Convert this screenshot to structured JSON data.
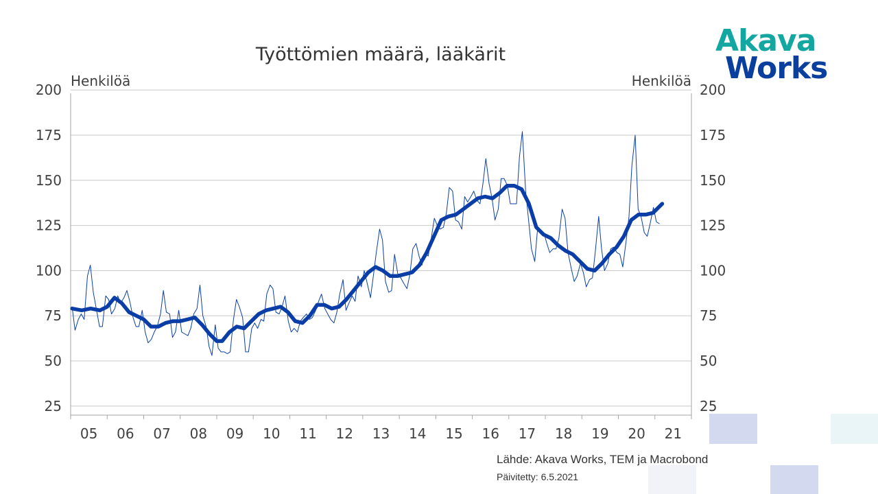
{
  "logo": {
    "line1": "Akava",
    "line2": "Works",
    "color1": "#14a7a2",
    "color2": "#0a3f9e"
  },
  "footer": {
    "source": "Lähde: Akava Works, TEM ja Macrobond",
    "updated": "Päivitetty:  6.5.2021"
  },
  "colors": {
    "series": "#0a3ea6",
    "grid": "#c8c8c8",
    "axis": "#a6a6a6",
    "text": "#404040"
  },
  "chart_data": {
    "type": "line",
    "title": "Työttömien määrä, lääkärit",
    "ylabel_left": "Henkilöä",
    "ylabel_right": "Henkilöä",
    "ylim": [
      20,
      205
    ],
    "yticks": [
      25,
      50,
      75,
      100,
      125,
      150,
      175,
      200
    ],
    "xlim": [
      2005.0,
      2022.0
    ],
    "xtick_labels": [
      "05",
      "06",
      "07",
      "08",
      "09",
      "10",
      "11",
      "12",
      "13",
      "14",
      "15",
      "16",
      "17",
      "18",
      "19",
      "20",
      "21"
    ],
    "grid": true,
    "legend": "none",
    "series": [
      {
        "style": "thin",
        "points": [
          [
            2005.04,
            80
          ],
          [
            2005.12,
            67
          ],
          [
            2005.21,
            73
          ],
          [
            2005.29,
            76
          ],
          [
            2005.37,
            73
          ],
          [
            2005.46,
            97
          ],
          [
            2005.54,
            103
          ],
          [
            2005.62,
            88
          ],
          [
            2005.71,
            78
          ],
          [
            2005.79,
            69
          ],
          [
            2005.87,
            69
          ],
          [
            2005.96,
            86
          ],
          [
            2006.04,
            84
          ],
          [
            2006.12,
            76
          ],
          [
            2006.21,
            79
          ],
          [
            2006.29,
            86
          ],
          [
            2006.37,
            82
          ],
          [
            2006.46,
            85
          ],
          [
            2006.54,
            89
          ],
          [
            2006.62,
            83
          ],
          [
            2006.71,
            74
          ],
          [
            2006.79,
            69
          ],
          [
            2006.87,
            69
          ],
          [
            2006.96,
            78
          ],
          [
            2007.04,
            66
          ],
          [
            2007.12,
            60
          ],
          [
            2007.21,
            62
          ],
          [
            2007.29,
            66
          ],
          [
            2007.37,
            69
          ],
          [
            2007.46,
            76
          ],
          [
            2007.54,
            89
          ],
          [
            2007.62,
            77
          ],
          [
            2007.71,
            76
          ],
          [
            2007.79,
            63
          ],
          [
            2007.87,
            66
          ],
          [
            2007.96,
            78
          ],
          [
            2008.04,
            66
          ],
          [
            2008.12,
            65
          ],
          [
            2008.21,
            64
          ],
          [
            2008.29,
            68
          ],
          [
            2008.37,
            76
          ],
          [
            2008.46,
            79
          ],
          [
            2008.54,
            92
          ],
          [
            2008.62,
            75
          ],
          [
            2008.71,
            69
          ],
          [
            2008.79,
            58
          ],
          [
            2008.87,
            53
          ],
          [
            2008.96,
            70
          ],
          [
            2009.04,
            57
          ],
          [
            2009.12,
            55
          ],
          [
            2009.21,
            55
          ],
          [
            2009.29,
            54
          ],
          [
            2009.37,
            55
          ],
          [
            2009.46,
            73
          ],
          [
            2009.54,
            84
          ],
          [
            2009.62,
            80
          ],
          [
            2009.71,
            74
          ],
          [
            2009.79,
            55
          ],
          [
            2009.87,
            55
          ],
          [
            2009.96,
            68
          ],
          [
            2010.04,
            71
          ],
          [
            2010.12,
            68
          ],
          [
            2010.21,
            73
          ],
          [
            2010.29,
            72
          ],
          [
            2010.37,
            87
          ],
          [
            2010.46,
            92
          ],
          [
            2010.54,
            90
          ],
          [
            2010.62,
            77
          ],
          [
            2010.71,
            76
          ],
          [
            2010.79,
            80
          ],
          [
            2010.87,
            86
          ],
          [
            2010.96,
            72
          ],
          [
            2011.04,
            66
          ],
          [
            2011.12,
            68
          ],
          [
            2011.21,
            66
          ],
          [
            2011.29,
            72
          ],
          [
            2011.37,
            74
          ],
          [
            2011.46,
            76
          ],
          [
            2011.54,
            73
          ],
          [
            2011.62,
            74
          ],
          [
            2011.71,
            78
          ],
          [
            2011.79,
            83
          ],
          [
            2011.87,
            87
          ],
          [
            2011.96,
            79
          ],
          [
            2012.04,
            76
          ],
          [
            2012.12,
            73
          ],
          [
            2012.21,
            71
          ],
          [
            2012.29,
            77
          ],
          [
            2012.37,
            87
          ],
          [
            2012.46,
            95
          ],
          [
            2012.54,
            78
          ],
          [
            2012.62,
            82
          ],
          [
            2012.71,
            86
          ],
          [
            2012.79,
            83
          ],
          [
            2012.87,
            97
          ],
          [
            2012.96,
            91
          ],
          [
            2013.04,
            100
          ],
          [
            2013.12,
            93
          ],
          [
            2013.21,
            85
          ],
          [
            2013.29,
            97
          ],
          [
            2013.37,
            110
          ],
          [
            2013.46,
            123
          ],
          [
            2013.54,
            117
          ],
          [
            2013.62,
            94
          ],
          [
            2013.71,
            88
          ],
          [
            2013.79,
            89
          ],
          [
            2013.87,
            109
          ],
          [
            2013.96,
            98
          ],
          [
            2014.04,
            96
          ],
          [
            2014.12,
            93
          ],
          [
            2014.21,
            90
          ],
          [
            2014.29,
            98
          ],
          [
            2014.37,
            112
          ],
          [
            2014.46,
            115
          ],
          [
            2014.54,
            108
          ],
          [
            2014.62,
            103
          ],
          [
            2014.71,
            110
          ],
          [
            2014.79,
            108
          ],
          [
            2014.87,
            117
          ],
          [
            2014.96,
            129
          ],
          [
            2015.04,
            125
          ],
          [
            2015.12,
            123
          ],
          [
            2015.21,
            124
          ],
          [
            2015.29,
            132
          ],
          [
            2015.37,
            146
          ],
          [
            2015.46,
            144
          ],
          [
            2015.54,
            128
          ],
          [
            2015.62,
            127
          ],
          [
            2015.71,
            123
          ],
          [
            2015.79,
            141
          ],
          [
            2015.87,
            138
          ],
          [
            2015.96,
            141
          ],
          [
            2016.04,
            144
          ],
          [
            2016.12,
            139
          ],
          [
            2016.21,
            137
          ],
          [
            2016.29,
            148
          ],
          [
            2016.37,
            162
          ],
          [
            2016.46,
            148
          ],
          [
            2016.54,
            140
          ],
          [
            2016.62,
            128
          ],
          [
            2016.71,
            134
          ],
          [
            2016.79,
            151
          ],
          [
            2016.87,
            151
          ],
          [
            2016.96,
            147
          ],
          [
            2017.04,
            137
          ],
          [
            2017.12,
            137
          ],
          [
            2017.21,
            137
          ],
          [
            2017.29,
            163
          ],
          [
            2017.37,
            177
          ],
          [
            2017.46,
            144
          ],
          [
            2017.54,
            128
          ],
          [
            2017.62,
            112
          ],
          [
            2017.71,
            105
          ],
          [
            2017.79,
            124
          ],
          [
            2017.87,
            122
          ],
          [
            2017.96,
            121
          ],
          [
            2018.04,
            115
          ],
          [
            2018.12,
            110
          ],
          [
            2018.21,
            112
          ],
          [
            2018.29,
            112
          ],
          [
            2018.37,
            118
          ],
          [
            2018.46,
            134
          ],
          [
            2018.54,
            129
          ],
          [
            2018.62,
            110
          ],
          [
            2018.71,
            101
          ],
          [
            2018.79,
            94
          ],
          [
            2018.87,
            97
          ],
          [
            2018.96,
            104
          ],
          [
            2019.04,
            99
          ],
          [
            2019.12,
            91
          ],
          [
            2019.21,
            95
          ],
          [
            2019.29,
            96
          ],
          [
            2019.37,
            111
          ],
          [
            2019.46,
            130
          ],
          [
            2019.54,
            112
          ],
          [
            2019.62,
            100
          ],
          [
            2019.71,
            104
          ],
          [
            2019.79,
            112
          ],
          [
            2019.87,
            113
          ],
          [
            2019.96,
            110
          ],
          [
            2020.04,
            109
          ],
          [
            2020.12,
            102
          ],
          [
            2020.21,
            116
          ],
          [
            2020.29,
            130
          ],
          [
            2020.37,
            158
          ],
          [
            2020.46,
            175
          ],
          [
            2020.54,
            134
          ],
          [
            2020.62,
            130
          ],
          [
            2020.71,
            121
          ],
          [
            2020.79,
            119
          ],
          [
            2020.87,
            126
          ],
          [
            2020.96,
            135
          ],
          [
            2021.04,
            127
          ],
          [
            2021.12,
            126
          ]
        ]
      },
      {
        "style": "thick",
        "points": [
          [
            2005.04,
            79
          ],
          [
            2005.3,
            78
          ],
          [
            2005.55,
            79
          ],
          [
            2005.8,
            78
          ],
          [
            2006.0,
            80
          ],
          [
            2006.2,
            85
          ],
          [
            2006.4,
            82
          ],
          [
            2006.6,
            77
          ],
          [
            2006.8,
            75
          ],
          [
            2007.0,
            73
          ],
          [
            2007.2,
            69
          ],
          [
            2007.4,
            69
          ],
          [
            2007.6,
            71
          ],
          [
            2007.8,
            72
          ],
          [
            2008.0,
            72
          ],
          [
            2008.2,
            73
          ],
          [
            2008.4,
            74
          ],
          [
            2008.6,
            70
          ],
          [
            2008.8,
            65
          ],
          [
            2009.0,
            61
          ],
          [
            2009.15,
            61
          ],
          [
            2009.35,
            66
          ],
          [
            2009.55,
            69
          ],
          [
            2009.75,
            68
          ],
          [
            2009.95,
            72
          ],
          [
            2010.15,
            76
          ],
          [
            2010.35,
            78
          ],
          [
            2010.55,
            79
          ],
          [
            2010.75,
            80
          ],
          [
            2010.95,
            77
          ],
          [
            2011.15,
            72
          ],
          [
            2011.35,
            71
          ],
          [
            2011.55,
            75
          ],
          [
            2011.75,
            81
          ],
          [
            2011.95,
            81
          ],
          [
            2012.15,
            79
          ],
          [
            2012.35,
            80
          ],
          [
            2012.55,
            84
          ],
          [
            2012.75,
            89
          ],
          [
            2012.95,
            94
          ],
          [
            2013.15,
            99
          ],
          [
            2013.35,
            102
          ],
          [
            2013.55,
            100
          ],
          [
            2013.75,
            97
          ],
          [
            2013.95,
            97
          ],
          [
            2014.15,
            98
          ],
          [
            2014.35,
            99
          ],
          [
            2014.55,
            103
          ],
          [
            2014.75,
            110
          ],
          [
            2014.95,
            119
          ],
          [
            2015.15,
            128
          ],
          [
            2015.35,
            130
          ],
          [
            2015.55,
            131
          ],
          [
            2015.75,
            134
          ],
          [
            2015.95,
            137
          ],
          [
            2016.15,
            140
          ],
          [
            2016.35,
            141
          ],
          [
            2016.55,
            140
          ],
          [
            2016.75,
            143
          ],
          [
            2016.95,
            147
          ],
          [
            2017.15,
            147
          ],
          [
            2017.35,
            145
          ],
          [
            2017.55,
            137
          ],
          [
            2017.75,
            124
          ],
          [
            2017.95,
            120
          ],
          [
            2018.15,
            118
          ],
          [
            2018.35,
            114
          ],
          [
            2018.55,
            111
          ],
          [
            2018.75,
            109
          ],
          [
            2018.95,
            105
          ],
          [
            2019.15,
            101
          ],
          [
            2019.35,
            100
          ],
          [
            2019.55,
            104
          ],
          [
            2019.75,
            109
          ],
          [
            2019.95,
            113
          ],
          [
            2020.15,
            119
          ],
          [
            2020.35,
            128
          ],
          [
            2020.55,
            131
          ],
          [
            2020.75,
            131
          ],
          [
            2020.95,
            132
          ],
          [
            2021.15,
            136
          ],
          [
            2021.2,
            137
          ]
        ]
      }
    ]
  }
}
